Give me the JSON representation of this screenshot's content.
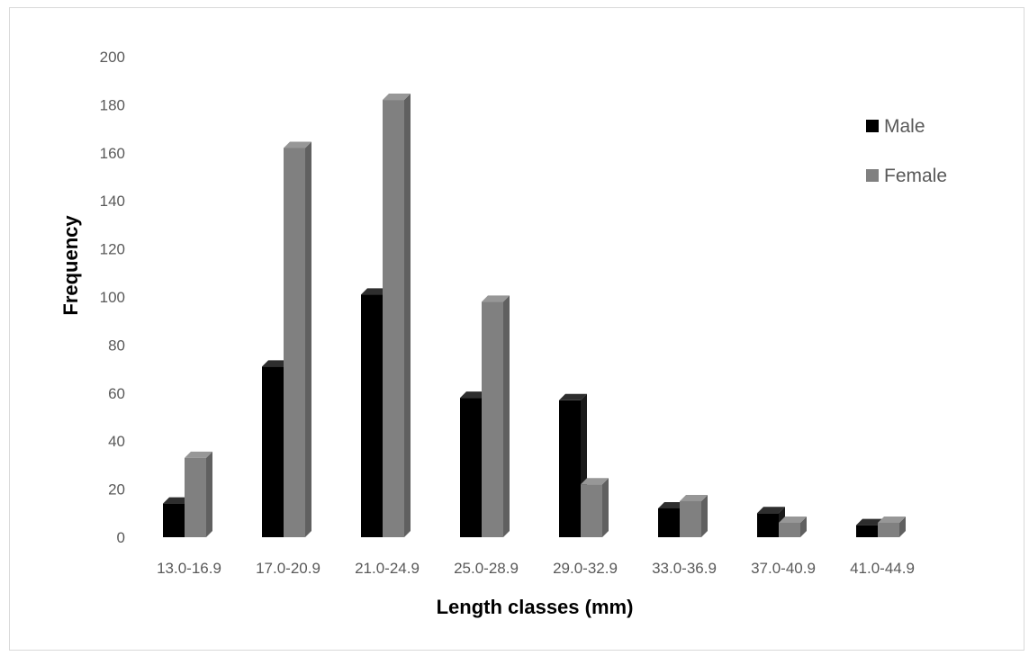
{
  "chart_data": {
    "type": "bar",
    "style": "3d-clustered-column",
    "categories": [
      "13.0-16.9",
      "17.0-20.9",
      "21.0-24.9",
      "25.0-28.9",
      "29.0-32.9",
      "33.0-36.9",
      "37.0-40.9",
      "41.0-44.9"
    ],
    "series": [
      {
        "name": "Male",
        "color": "#000000",
        "values": [
          14,
          71,
          101,
          58,
          57,
          12,
          10,
          5
        ]
      },
      {
        "name": "Female",
        "color": "#808080",
        "values": [
          33,
          162,
          182,
          98,
          22,
          15,
          6,
          6
        ]
      }
    ],
    "title": "",
    "xlabel": "Length classes (mm)",
    "ylabel": "Frequency",
    "ylim": [
      0,
      200
    ],
    "yticks": [
      0,
      20,
      40,
      60,
      80,
      100,
      120,
      140,
      160,
      180,
      200
    ],
    "grid": false,
    "legend_position": "top-right"
  }
}
